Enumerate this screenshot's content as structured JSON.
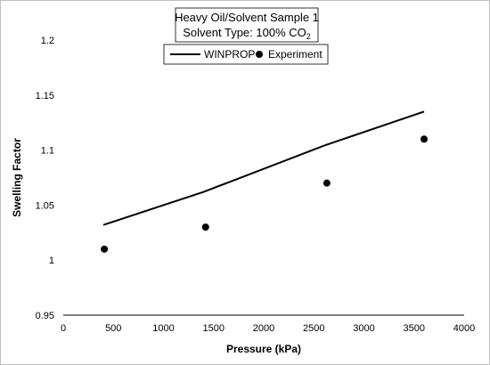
{
  "chart_data": {
    "type": "line",
    "title": "Heavy Oil/Solvent Sample 1",
    "subtitle": {
      "prefix": "Solvent Type: 100% CO",
      "subscript": "2"
    },
    "xlabel": "Pressure (kPa)",
    "ylabel": "Swelling Factor",
    "xlim": [
      0,
      4000
    ],
    "ylim": [
      0.95,
      1.2
    ],
    "x_ticks": [
      "0",
      "500",
      "1000",
      "1500",
      "2000",
      "2500",
      "3000",
      "3500",
      "4000"
    ],
    "y_ticks": [
      "0.95",
      "1",
      "1.05",
      "1.1",
      "1.15",
      "1.2"
    ],
    "grid": false,
    "legend_position": "top-center",
    "series": [
      {
        "name": "WINPROP",
        "kind": "line",
        "color": "#000000",
        "x": [
          400,
          1400,
          2600,
          3600
        ],
        "y": [
          1.032,
          1.062,
          1.104,
          1.135
        ]
      },
      {
        "name": "Experiment",
        "kind": "scatter",
        "color": "#000000",
        "x": [
          410,
          1420,
          2630,
          3600
        ],
        "y": [
          1.01,
          1.03,
          1.07,
          1.11
        ]
      }
    ]
  }
}
